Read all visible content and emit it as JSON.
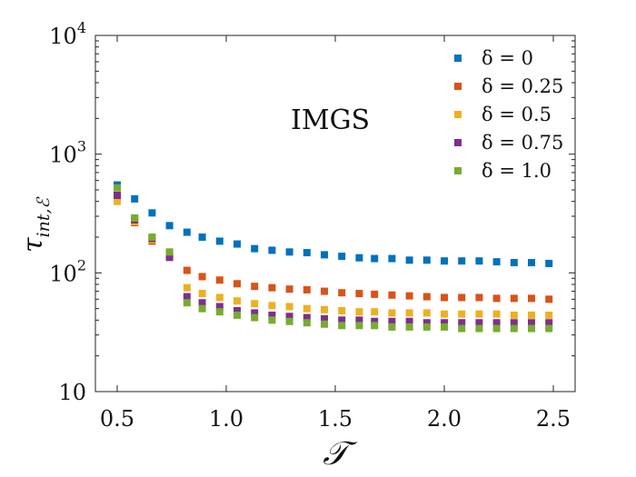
{
  "chart_data": {
    "type": "scatter",
    "title": "",
    "annotation": "IMGS",
    "xlabel": "𝒯",
    "ylabel_main": "τ",
    "ylabel_sub": "int,ℰ",
    "xlim": [
      0.4,
      2.6
    ],
    "ylim": [
      10,
      10000
    ],
    "yscale": "log",
    "x_ticks": [
      {
        "value": 0.5,
        "label": "0.5"
      },
      {
        "value": 1.0,
        "label": "1.0"
      },
      {
        "value": 1.5,
        "label": "1.5"
      },
      {
        "value": 2.0,
        "label": "2.0"
      },
      {
        "value": 2.5,
        "label": "2.5"
      }
    ],
    "y_ticks": [
      {
        "value": 10,
        "base": "10",
        "exp": ""
      },
      {
        "value": 100,
        "base": "10",
        "exp": "2"
      },
      {
        "value": 1000,
        "base": "10",
        "exp": "3"
      },
      {
        "value": 10000,
        "base": "10",
        "exp": "4"
      }
    ],
    "legend_position": "top-right",
    "x": [
      0.5,
      0.58,
      0.66,
      0.74,
      0.82,
      0.89,
      0.97,
      1.05,
      1.13,
      1.21,
      1.29,
      1.37,
      1.45,
      1.53,
      1.61,
      1.68,
      1.76,
      1.84,
      1.92,
      2.0,
      2.08,
      2.16,
      2.24,
      2.32,
      2.4,
      2.48
    ],
    "series": [
      {
        "name": "δ = 0",
        "color": "#0072BD",
        "values": [
          550,
          420,
          320,
          250,
          220,
          200,
          185,
          175,
          160,
          155,
          150,
          148,
          142,
          138,
          134,
          132,
          132,
          128,
          128,
          126,
          126,
          126,
          124,
          122,
          122,
          120
        ]
      },
      {
        "name": "δ = 0.25",
        "color": "#D95319",
        "values": [
          420,
          265,
          185,
          140,
          105,
          93,
          87,
          81,
          77,
          75,
          73,
          72,
          70,
          68,
          67,
          66,
          65,
          64,
          63,
          62,
          62,
          62,
          61,
          61,
          61,
          60
        ]
      },
      {
        "name": "δ = 0.5",
        "color": "#EDB120",
        "values": [
          400,
          270,
          190,
          145,
          75,
          67,
          62,
          58,
          55,
          53,
          52,
          50,
          49,
          48,
          47,
          47,
          46,
          46,
          46,
          45,
          45,
          45,
          45,
          44,
          44,
          44
        ]
      },
      {
        "name": "δ = 0.75",
        "color": "#7E2F8E",
        "values": [
          450,
          280,
          195,
          135,
          63,
          56,
          52,
          48,
          46,
          44,
          43,
          42,
          41,
          40,
          40,
          39,
          39,
          39,
          38,
          38,
          38,
          38,
          38,
          38,
          38,
          38
        ]
      },
      {
        "name": "δ = 1.0",
        "color": "#77AC30",
        "values": [
          520,
          290,
          200,
          150,
          56,
          50,
          47,
          44,
          42,
          40,
          39,
          38,
          37,
          36,
          36,
          36,
          35,
          35,
          35,
          35,
          34,
          34,
          34,
          34,
          34,
          34
        ]
      }
    ]
  }
}
